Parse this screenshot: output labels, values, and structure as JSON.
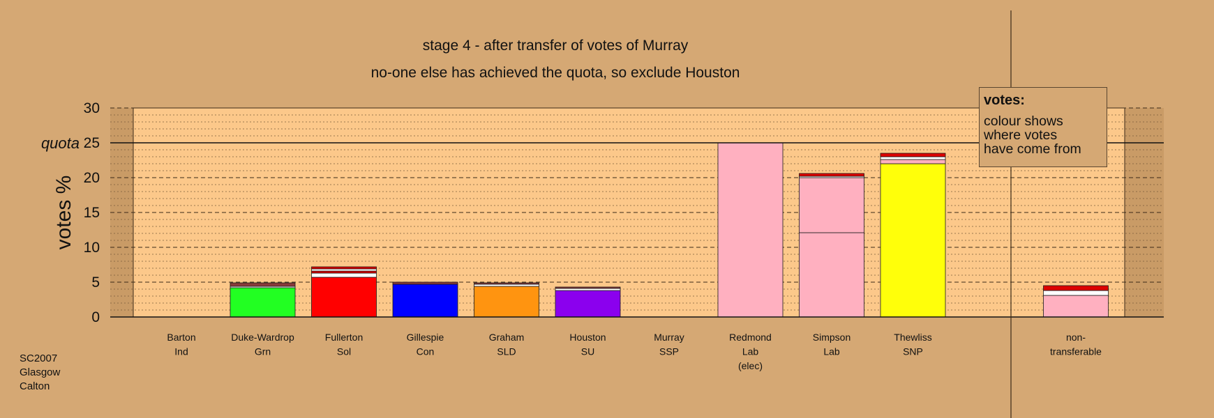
{
  "chart_data": {
    "type": "stacked-bar",
    "title": "stage 4 - after transfer of votes of Murray",
    "subtitle": "no-one else has achieved the quota, so exclude Houston",
    "ylabel": "votes %",
    "ylim": [
      0,
      30
    ],
    "yticks": [
      "0",
      "5",
      "10",
      "15",
      "20",
      "25",
      "30"
    ],
    "quota": {
      "label": "quota",
      "value": 25
    },
    "grid": true,
    "colors": {
      "Grn": "#22ff22",
      "Sol": "#ff0000",
      "Con": "#0000ff",
      "SLD": "#ff9410",
      "SU": "#8b00ee",
      "Lab": "#ffb0c0",
      "SNP": "#ffff0a",
      "transfer_red": "#dd0000",
      "transfer_white": "#ffffff",
      "transfer_dark": "#8b3a3a"
    },
    "candidates": [
      {
        "name": "Barton",
        "party": "Ind",
        "segments": []
      },
      {
        "name": "Duke-Wardrop",
        "party": "Grn",
        "segments": [
          {
            "from": "Grn",
            "value": 4.2
          },
          {
            "from": "transfer_white",
            "value": 0.2
          },
          {
            "from": "transfer_dark",
            "value": 0.5
          }
        ]
      },
      {
        "name": "Fullerton",
        "party": "Sol",
        "segments": [
          {
            "from": "Sol",
            "value": 5.7
          },
          {
            "from": "transfer_white",
            "value": 0.6
          },
          {
            "from": "transfer_red",
            "value": 0.3
          },
          {
            "from": "transfer_white",
            "value": 0.3
          },
          {
            "from": "transfer_red",
            "value": 0.3
          }
        ]
      },
      {
        "name": "Gillespie",
        "party": "Con",
        "segments": [
          {
            "from": "Con",
            "value": 4.7
          },
          {
            "from": "transfer_dark",
            "value": 0.3
          }
        ]
      },
      {
        "name": "Graham",
        "party": "SLD",
        "segments": [
          {
            "from": "SLD",
            "value": 4.4
          },
          {
            "from": "transfer_white",
            "value": 0.3
          },
          {
            "from": "transfer_dark",
            "value": 0.2
          }
        ]
      },
      {
        "name": "Houston",
        "party": "SU",
        "segments": [
          {
            "from": "SU",
            "value": 3.8
          },
          {
            "from": "transfer_white",
            "value": 0.3
          },
          {
            "from": "transfer_dark",
            "value": 0.2
          }
        ]
      },
      {
        "name": "Murray",
        "party": "SSP",
        "segments": []
      },
      {
        "name": "Redmond",
        "party": "Lab",
        "note": "(elec)",
        "segments": [
          {
            "from": "Lab",
            "value": 25.0
          }
        ]
      },
      {
        "name": "Simpson",
        "party": "Lab",
        "segments": [
          {
            "from": "Lab",
            "value": 12.1
          },
          {
            "from": "Lab",
            "value": 7.9
          },
          {
            "from": "transfer_white",
            "value": 0.2
          },
          {
            "from": "transfer_red",
            "value": 0.4
          }
        ]
      },
      {
        "name": "Thewliss",
        "party": "SNP",
        "segments": [
          {
            "from": "SNP",
            "value": 22.0
          },
          {
            "from": "Lab",
            "value": 0.6
          },
          {
            "from": "transfer_white",
            "value": 0.4
          },
          {
            "from": "transfer_red",
            "value": 0.5
          }
        ]
      }
    ],
    "nontransferable": {
      "name": "non-",
      "party": "transferable",
      "segments": [
        {
          "from": "Lab",
          "value": 3.1
        },
        {
          "from": "transfer_white",
          "value": 0.7
        },
        {
          "from": "transfer_red",
          "value": 0.7
        }
      ]
    },
    "legend": {
      "title": "votes:",
      "text": "colour shows\nwhere votes\nhave come from"
    }
  },
  "source": "SC2007\nGlasgow\nCalton"
}
